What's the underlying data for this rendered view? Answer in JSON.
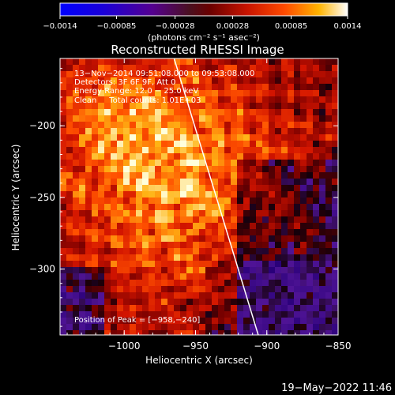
{
  "chart_data": {
    "type": "heatmap",
    "title": "Reconstructed RHESSI Image",
    "xlabel": "Heliocentric X (arcsec)",
    "ylabel": "Heliocentric Y (arcsec)",
    "xlim": [
      -1045,
      -850
    ],
    "ylim": [
      -346,
      -153
    ],
    "xticks": [
      -1000,
      -950,
      -900,
      -850
    ],
    "yticks": [
      -200,
      -250,
      -300
    ],
    "xtick_labels": [
      "−1000",
      "−950",
      "−900",
      "−850"
    ],
    "ytick_labels": [
      "−200",
      "−250",
      "−300"
    ],
    "colorbar": {
      "min": -0.0014,
      "max": 0.0014,
      "ticks": [
        -0.0014,
        -0.00085,
        -0.00028,
        0.00028,
        0.00085,
        0.0014
      ],
      "tick_labels": [
        "−0.0014",
        "−0.00085",
        "−0.00028",
        "0.00028",
        "0.00085",
        "0.0014"
      ],
      "unit_label": "(photons cm⁻² s⁻¹ asec⁻²)"
    },
    "annotations": [
      "13−Nov−2014 09:51:08.000 to 09:53:08.000",
      "Detectors: 3F 6F 9F, Att 0",
      "Energy Range: 12.0 − 25.0 keV",
      "Clean     Total counts: 1.01E+03"
    ],
    "peak_label": "Position of Peak = [−958,−240]",
    "peak": {
      "x": -958,
      "y": -240
    },
    "limb_line": [
      {
        "x": -965,
        "y": -153
      },
      {
        "x": -906,
        "y": -346
      }
    ],
    "footer_timestamp": "19−May−2022 11:46"
  }
}
